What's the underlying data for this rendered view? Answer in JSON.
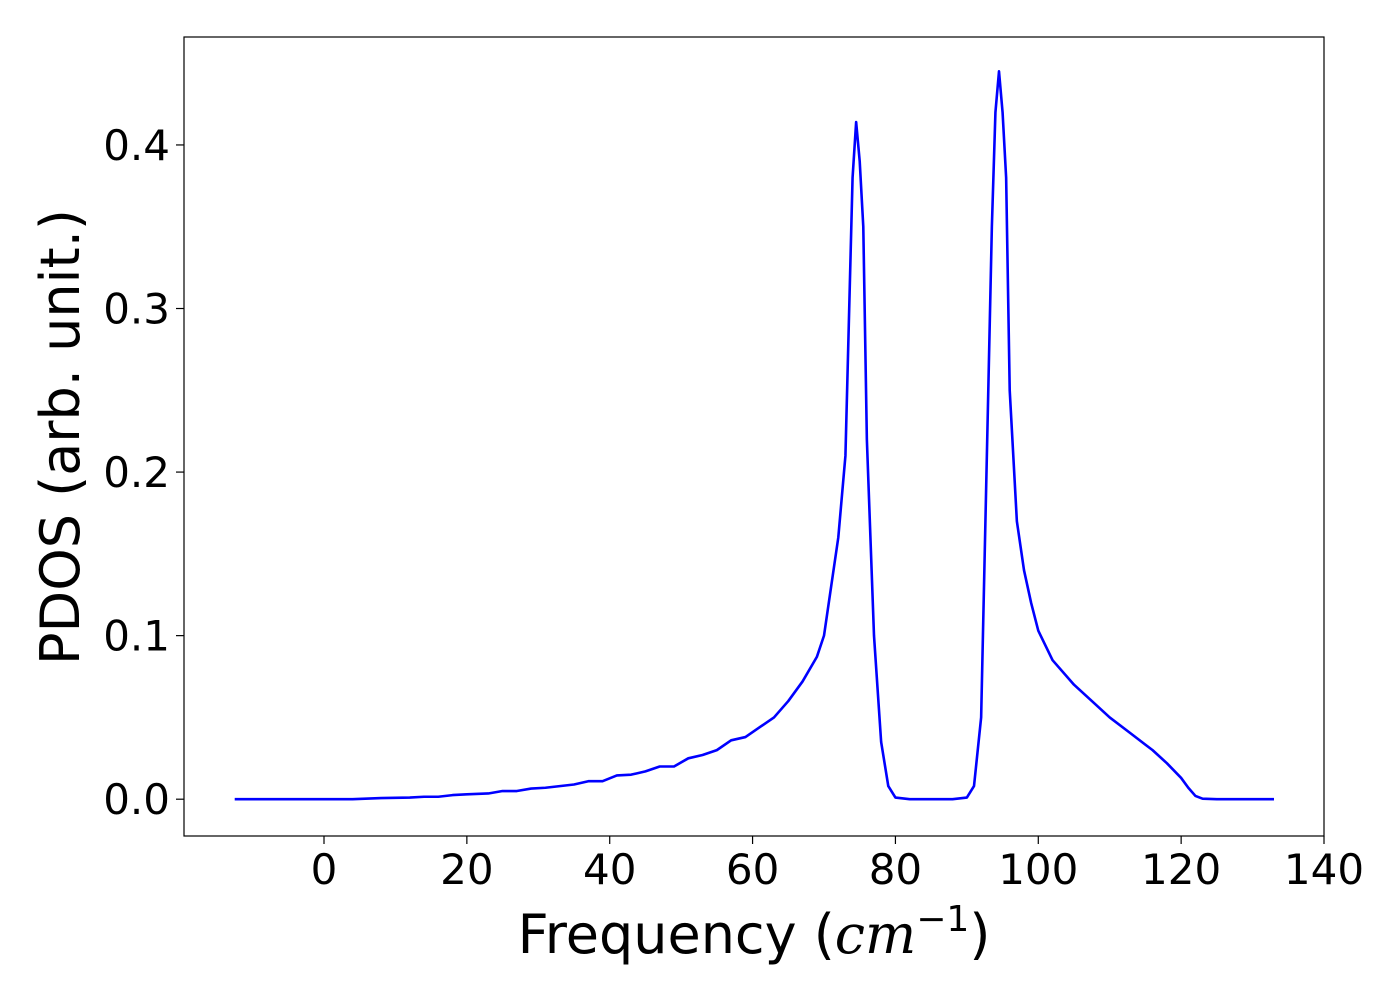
{
  "chart_data": {
    "type": "line",
    "title": "",
    "xlabel": "Frequency (",
    "xlabel_unit_base": "cm",
    "xlabel_unit_exp": "−1",
    "xlabel_close": ")",
    "ylabel": "PDOS (arb. unit.)",
    "xlim": [
      -19.6,
      140
    ],
    "ylim": [
      -0.0225,
      0.466
    ],
    "grid": false,
    "x_ticks": [
      0,
      20,
      40,
      60,
      80,
      100,
      120,
      140
    ],
    "x_tick_labels": [
      "0",
      "20",
      "40",
      "60",
      "80",
      "100",
      "120",
      "140"
    ],
    "y_ticks": [
      0.0,
      0.1,
      0.2,
      0.3,
      0.4
    ],
    "y_tick_labels": [
      "0.0",
      "0.1",
      "0.2",
      "0.3",
      "0.4"
    ],
    "series": [
      {
        "color": "#0000ff",
        "x": [
          -12.5,
          0,
          4,
          8,
          12,
          14,
          16,
          18,
          20,
          23,
          25,
          27,
          29,
          31,
          33,
          35,
          37,
          39,
          41,
          43,
          45,
          47,
          49,
          51,
          53,
          55,
          57,
          59,
          61,
          63,
          65,
          67,
          69,
          70,
          71,
          72,
          73,
          74,
          74.5,
          75,
          75.5,
          76,
          77,
          78,
          79,
          80,
          82,
          85,
          88,
          90,
          91,
          92,
          92.5,
          93,
          93.5,
          94,
          94.5,
          95,
          95.5,
          96,
          97,
          98,
          99,
          100,
          102,
          105,
          108,
          110,
          113,
          116,
          118,
          120,
          121,
          122,
          123,
          125,
          130,
          133
        ],
        "y": [
          0,
          0,
          0,
          0.0007,
          0.001,
          0.0015,
          0.0015,
          0.0025,
          0.003,
          0.0035,
          0.005,
          0.005,
          0.0065,
          0.007,
          0.008,
          0.009,
          0.011,
          0.011,
          0.0145,
          0.015,
          0.017,
          0.02,
          0.02,
          0.025,
          0.027,
          0.03,
          0.036,
          0.038,
          0.044,
          0.05,
          0.06,
          0.072,
          0.087,
          0.1,
          0.13,
          0.16,
          0.21,
          0.38,
          0.414,
          0.39,
          0.35,
          0.22,
          0.1,
          0.035,
          0.008,
          0.001,
          0,
          0,
          0,
          0.001,
          0.008,
          0.05,
          0.15,
          0.25,
          0.35,
          0.42,
          0.445,
          0.42,
          0.38,
          0.25,
          0.17,
          0.14,
          0.12,
          0.103,
          0.085,
          0.07,
          0.058,
          0.05,
          0.04,
          0.03,
          0.022,
          0.013,
          0.007,
          0.002,
          0.0003,
          0,
          0,
          0
        ]
      }
    ]
  }
}
